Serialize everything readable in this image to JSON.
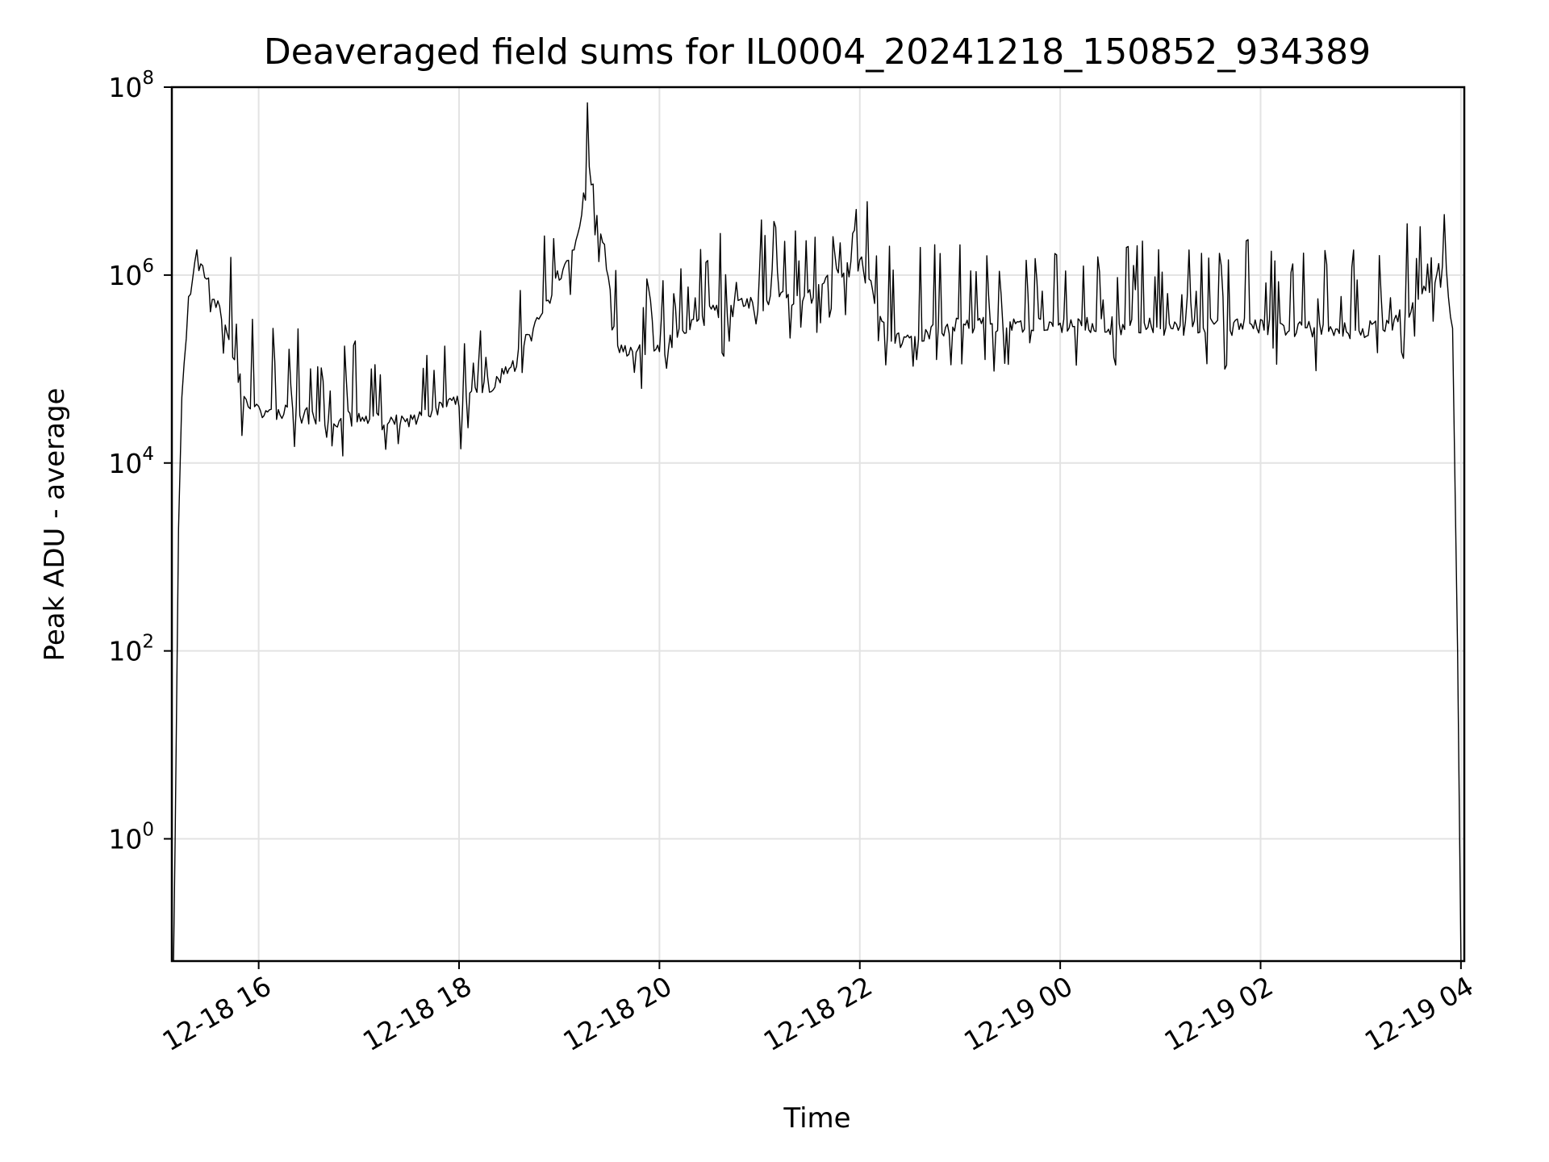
{
  "chart_data": {
    "type": "line",
    "title": "Deaveraged field sums for IL0004_20241218_150852_934389",
    "xlabel": "Time",
    "ylabel": "Peak ADU - average",
    "yscale": "log",
    "ylim": [
      0.05,
      100000000
    ],
    "xlim": [
      "2024-12-18 15:08",
      "2024-12-19 04:02"
    ],
    "grid": true,
    "line_color": "#000000",
    "x_ticks": [
      {
        "value": "2024-12-18 16:00",
        "label": "12-18 16"
      },
      {
        "value": "2024-12-18 18:00",
        "label": "12-18 18"
      },
      {
        "value": "2024-12-18 20:00",
        "label": "12-18 20"
      },
      {
        "value": "2024-12-18 22:00",
        "label": "12-18 22"
      },
      {
        "value": "2024-12-19 00:00",
        "label": "12-19 00"
      },
      {
        "value": "2024-12-19 02:00",
        "label": "12-19 02"
      },
      {
        "value": "2024-12-19 04:00",
        "label": "12-19 04"
      }
    ],
    "y_ticks": [
      {
        "value": 1,
        "base": "10",
        "exp": "0"
      },
      {
        "value": 100,
        "base": "10",
        "exp": "2"
      },
      {
        "value": 10000,
        "base": "10",
        "exp": "4"
      },
      {
        "value": 1000000,
        "base": "10",
        "exp": "6"
      },
      {
        "value": 100000000,
        "base": "10",
        "exp": "8"
      }
    ],
    "series": [
      {
        "x": [
          "2024-12-18 15:09",
          "2024-12-18 15:10",
          "2024-12-18 15:12",
          "2024-12-18 15:14",
          "2024-12-18 15:18",
          "2024-12-18 15:23",
          "2024-12-18 15:30",
          "2024-12-18 15:40",
          "2024-12-18 15:50",
          "2024-12-18 15:55",
          "2024-12-18 16:00",
          "2024-12-18 16:30",
          "2024-12-18 17:00",
          "2024-12-18 17:30",
          "2024-12-18 18:00",
          "2024-12-18 18:30",
          "2024-12-18 18:50",
          "2024-12-18 19:00",
          "2024-12-18 19:10",
          "2024-12-18 19:18",
          "2024-12-18 19:26",
          "2024-12-18 19:35",
          "2024-12-18 19:45",
          "2024-12-18 20:00",
          "2024-12-18 20:30",
          "2024-12-18 21:00",
          "2024-12-18 21:30",
          "2024-12-18 22:00",
          "2024-12-18 22:20",
          "2024-12-18 23:00",
          "2024-12-19 00:00",
          "2024-12-19 01:00",
          "2024-12-19 02:00",
          "2024-12-19 03:00",
          "2024-12-19 03:20",
          "2024-12-19 03:40",
          "2024-12-19 03:50",
          "2024-12-19 03:55",
          "2024-12-19 03:58",
          "2024-12-19 04:00"
        ],
        "y": [
          0.05,
          1,
          2000,
          50000,
          500000,
          1500000,
          800000,
          300000,
          60000,
          40000,
          35000,
          32000,
          28000,
          28000,
          45000,
          90000,
          400000,
          1000000,
          2500000,
          12000000,
          2500000,
          180000,
          160000,
          150000,
          400000,
          500000,
          600000,
          1400000,
          200000,
          300000,
          300000,
          280000,
          280000,
          250000,
          300000,
          700000,
          1400000,
          300000,
          100,
          0.05
        ]
      }
    ]
  }
}
